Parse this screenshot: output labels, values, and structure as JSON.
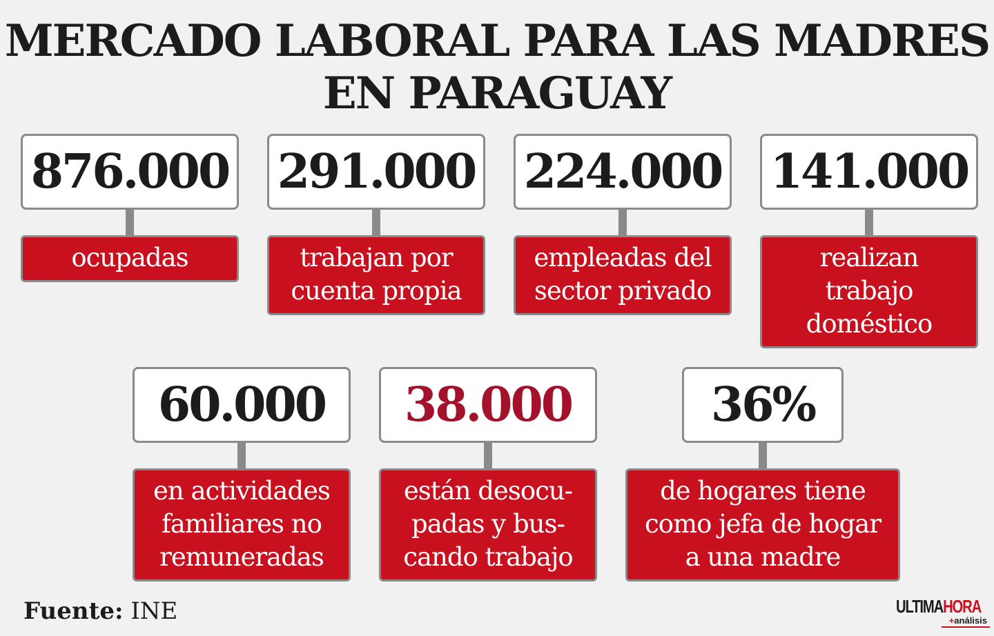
{
  "title": {
    "line1": "MERCADO LABORAL PARA LAS MADRES",
    "line2": "EN PARAGUAY"
  },
  "stats": [
    {
      "value": "876.000",
      "label": [
        "ocupadas"
      ]
    },
    {
      "value": "291.000",
      "label": [
        "trabajan por",
        "cuenta propia"
      ]
    },
    {
      "value": "224.000",
      "label": [
        "empleadas del",
        "sector privado"
      ]
    },
    {
      "value": "141.000",
      "label": [
        "realizan",
        "trabajo",
        "doméstico"
      ]
    },
    {
      "value": "60.000",
      "label": [
        "en actividades",
        "familiares no",
        "remuneradas"
      ]
    },
    {
      "value": "38.000",
      "label": [
        "están desocu-",
        "padas y bus-",
        "cando trabajo"
      ]
    },
    {
      "value": "36%",
      "label": [
        "de hogares tiene",
        "como jefa de hogar",
        "a una madre"
      ]
    }
  ],
  "source": {
    "prefix": "Fuente:",
    "name": "INE"
  },
  "logo": {
    "part1": "ULTIMA",
    "part2": "HORA",
    "plus": "+",
    "sub": "análisis"
  },
  "colors": {
    "background": "#f1f1f1",
    "label_red": "#c8101f",
    "highlight_value": "#a3122a",
    "border_gray": "#8a8a8a"
  }
}
